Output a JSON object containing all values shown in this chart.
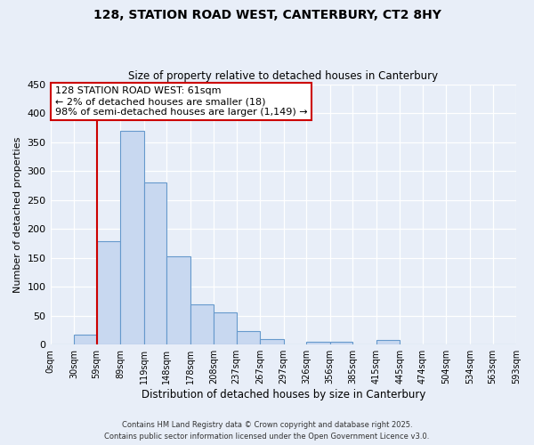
{
  "title": "128, STATION ROAD WEST, CANTERBURY, CT2 8HY",
  "subtitle": "Size of property relative to detached houses in Canterbury",
  "xlabel": "Distribution of detached houses by size in Canterbury",
  "ylabel": "Number of detached properties",
  "bar_color": "#c8d8f0",
  "bar_edge_color": "#6699cc",
  "background_color": "#e8eef8",
  "grid_color": "#ffffff",
  "bin_edges": [
    0,
    30,
    59,
    89,
    119,
    148,
    178,
    208,
    237,
    267,
    297,
    326,
    356,
    385,
    415,
    445,
    474,
    504,
    534,
    563,
    593
  ],
  "bin_labels": [
    "0sqm",
    "30sqm",
    "59sqm",
    "89sqm",
    "119sqm",
    "148sqm",
    "178sqm",
    "208sqm",
    "237sqm",
    "267sqm",
    "297sqm",
    "326sqm",
    "356sqm",
    "385sqm",
    "415sqm",
    "445sqm",
    "474sqm",
    "504sqm",
    "534sqm",
    "563sqm",
    "593sqm"
  ],
  "counts": [
    0,
    18,
    178,
    370,
    280,
    153,
    70,
    55,
    24,
    10,
    0,
    5,
    5,
    0,
    8,
    0,
    0,
    0,
    0,
    0
  ],
  "property_line_x": 59,
  "ylim": [
    0,
    450
  ],
  "yticks": [
    0,
    50,
    100,
    150,
    200,
    250,
    300,
    350,
    400,
    450
  ],
  "annotation_title": "128 STATION ROAD WEST: 61sqm",
  "annotation_line1": "← 2% of detached houses are smaller (18)",
  "annotation_line2": "98% of semi-detached houses are larger (1,149) →",
  "footer1": "Contains HM Land Registry data © Crown copyright and database right 2025.",
  "footer2": "Contains public sector information licensed under the Open Government Licence v3.0.",
  "annotation_box_color": "#ffffff",
  "annotation_box_edge_color": "#cc0000",
  "property_line_color": "#cc0000"
}
